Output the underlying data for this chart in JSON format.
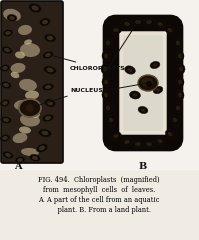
{
  "title_line1": "FIG. 494.  Chloroplasts  (magnified)",
  "title_line2": "from  mesophyll  cells  of  leaves.",
  "title_line3": "A. A part of the cell from an aquatic",
  "title_line4": "     plant. B. From a land plant.",
  "label_chloroplasts": "CHLOROPLASTS",
  "label_nucleus": "NUCLEUS",
  "label_a": "A",
  "label_b": "B",
  "bg_color": "#f0ece4",
  "diagram_bg": "#e8e4dc",
  "cell_dark": "#1a1008",
  "cell_medium": "#3a2a18",
  "cell_light": "#8a7a60",
  "chloroplast_black": "#0d0805",
  "chloroplast_gray": "#5a4a38",
  "text_color": "#111111",
  "caption_bg": "#e8e4dc"
}
